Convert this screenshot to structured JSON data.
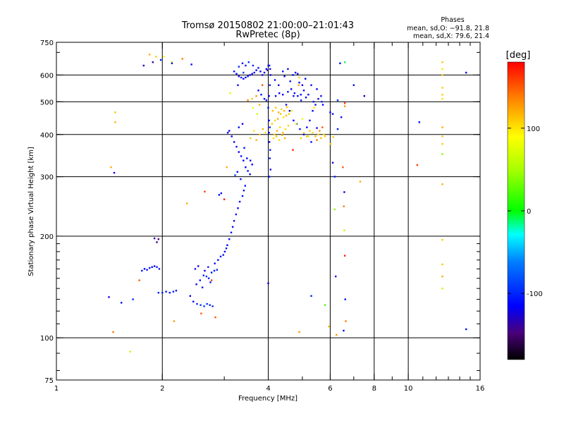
{
  "chart_data": {
    "type": "scatter",
    "title": "Tromsø 20150802 21:00:00–21:01:43",
    "subtitle": "RwPretec (8p)",
    "xlabel": "Frequency [MHz]",
    "ylabel": "Stationary phase Virtual Height [km]",
    "x_scale": "log",
    "y_scale": "log",
    "xlim": [
      1,
      16
    ],
    "ylim": [
      75,
      750
    ],
    "x_ticks": [
      1,
      2,
      4,
      6,
      8,
      10,
      16
    ],
    "x_tick_labels": [
      "1",
      "2",
      "4",
      "6",
      "8",
      "10",
      "16"
    ],
    "y_ticks": [
      75,
      100,
      200,
      300,
      400,
      500,
      600,
      750
    ],
    "y_tick_labels": [
      "75",
      "100",
      "200",
      "300",
      "400",
      "500",
      "600",
      "750"
    ],
    "grid": true,
    "stats": {
      "heading": "Phases",
      "line_o": "mean, sd,O: −91.8, 21.8",
      "line_x": "mean, sd,X:  79.6, 21.4"
    },
    "colorbar": {
      "label": "[deg]",
      "range": [
        -180,
        180
      ],
      "ticks": [
        100,
        0,
        -100
      ],
      "tick_labels": [
        "100",
        "0",
        "-100"
      ]
    },
    "points": [
      [
        1.77,
        640,
        -120
      ],
      [
        1.88,
        655,
        -140
      ],
      [
        1.84,
        690,
        120
      ],
      [
        1.92,
        680,
        110
      ],
      [
        2.02,
        680,
        90
      ],
      [
        2.13,
        655,
        70
      ],
      [
        2.28,
        670,
        140
      ],
      [
        2.42,
        645,
        -110
      ],
      [
        2.13,
        650,
        -120
      ],
      [
        1.98,
        665,
        -100
      ],
      [
        1.43,
        320,
        120
      ],
      [
        1.46,
        308,
        -120
      ],
      [
        1.47,
        465,
        110
      ],
      [
        1.47,
        435,
        120
      ],
      [
        1.75,
        158,
        -110
      ],
      [
        1.78,
        160,
        -115
      ],
      [
        1.81,
        159,
        -112
      ],
      [
        1.84,
        161,
        -108
      ],
      [
        1.87,
        162,
        -112
      ],
      [
        1.9,
        163,
        -118
      ],
      [
        1.93,
        162,
        -110
      ],
      [
        1.96,
        160,
        -105
      ],
      [
        1.9,
        197,
        -130
      ],
      [
        1.93,
        192,
        -140
      ],
      [
        1.95,
        196,
        -150
      ],
      [
        1.95,
        136,
        -105
      ],
      [
        2.0,
        136,
        -100
      ],
      [
        2.05,
        137,
        -110
      ],
      [
        2.1,
        136,
        -108
      ],
      [
        2.15,
        137,
        -104
      ],
      [
        2.19,
        138,
        -110
      ],
      [
        1.41,
        132,
        -120
      ],
      [
        1.53,
        127,
        -110
      ],
      [
        1.65,
        130,
        -100
      ],
      [
        1.72,
        148,
        150
      ],
      [
        1.45,
        104,
        140
      ],
      [
        1.62,
        91,
        60
      ],
      [
        2.4,
        133,
        -120
      ],
      [
        2.45,
        128,
        -110
      ],
      [
        2.51,
        126,
        -100
      ],
      [
        2.57,
        125,
        -95
      ],
      [
        2.63,
        124,
        -90
      ],
      [
        2.68,
        126,
        -95
      ],
      [
        2.73,
        125,
        -100
      ],
      [
        2.78,
        124,
        -95
      ],
      [
        2.5,
        144,
        -120
      ],
      [
        2.56,
        148,
        -110
      ],
      [
        2.62,
        153,
        -100
      ],
      [
        2.67,
        152,
        -95
      ],
      [
        2.71,
        150,
        -100
      ],
      [
        2.76,
        156,
        -110
      ],
      [
        2.81,
        158,
        -105
      ],
      [
        2.86,
        159,
        -100
      ],
      [
        2.48,
        160,
        -120
      ],
      [
        2.53,
        163,
        -115
      ],
      [
        2.6,
        141,
        -110
      ],
      [
        2.64,
        158,
        -115
      ],
      [
        2.7,
        162,
        -100
      ],
      [
        2.74,
        146,
        -105
      ],
      [
        2.82,
        166,
        -110
      ],
      [
        2.88,
        170,
        -110
      ],
      [
        2.93,
        174,
        -115
      ],
      [
        2.98,
        176,
        -110
      ],
      [
        3.01,
        180,
        -120
      ],
      [
        3.04,
        184,
        -110
      ],
      [
        3.06,
        188,
        -115
      ],
      [
        3.1,
        196,
        -110
      ],
      [
        3.14,
        205,
        -110
      ],
      [
        3.17,
        213,
        -115
      ],
      [
        3.2,
        222,
        -110
      ],
      [
        3.24,
        232,
        -110
      ],
      [
        3.28,
        242,
        -115
      ],
      [
        3.32,
        253,
        -115
      ],
      [
        3.38,
        263,
        -112
      ],
      [
        3.41,
        273,
        -110
      ],
      [
        3.44,
        282,
        -108
      ],
      [
        3.0,
        257,
        170
      ],
      [
        3.22,
        303,
        -90
      ],
      [
        3.05,
        320,
        120
      ],
      [
        3.34,
        295,
        -110
      ],
      [
        2.9,
        265,
        -120
      ],
      [
        2.94,
        268,
        -110
      ],
      [
        3.27,
        310,
        -120
      ],
      [
        3.07,
        405,
        -120
      ],
      [
        2.35,
        250,
        120
      ],
      [
        2.76,
        148,
        160
      ],
      [
        2.58,
        118,
        150
      ],
      [
        2.83,
        115,
        150
      ],
      [
        2.16,
        112,
        130
      ],
      [
        2.64,
        271,
        160
      ],
      [
        3.1,
        410,
        -120
      ],
      [
        3.15,
        395,
        -115
      ],
      [
        3.2,
        380,
        -120
      ],
      [
        3.25,
        368,
        -110
      ],
      [
        3.3,
        355,
        -115
      ],
      [
        3.35,
        345,
        -110
      ],
      [
        3.4,
        335,
        -120
      ],
      [
        3.45,
        320,
        -115
      ],
      [
        3.5,
        312,
        -110
      ],
      [
        3.55,
        305,
        -115
      ],
      [
        3.3,
        420,
        -110
      ],
      [
        3.38,
        430,
        -120
      ],
      [
        3.42,
        365,
        -110
      ],
      [
        3.48,
        340,
        -115
      ],
      [
        3.56,
        335,
        -110
      ],
      [
        3.6,
        326,
        -120
      ],
      [
        3.2,
        615,
        -110
      ],
      [
        3.25,
        605,
        -115
      ],
      [
        3.3,
        595,
        -120
      ],
      [
        3.35,
        590,
        -110
      ],
      [
        3.4,
        585,
        -112
      ],
      [
        3.45,
        590,
        -118
      ],
      [
        3.5,
        595,
        -110
      ],
      [
        3.55,
        600,
        -115
      ],
      [
        3.6,
        605,
        -120
      ],
      [
        3.65,
        610,
        -110
      ],
      [
        3.7,
        620,
        -115
      ],
      [
        3.75,
        630,
        -110
      ],
      [
        3.8,
        615,
        -112
      ],
      [
        3.85,
        600,
        -118
      ],
      [
        3.9,
        610,
        -110
      ],
      [
        3.95,
        625,
        -115
      ],
      [
        4.0,
        640,
        -100
      ],
      [
        4.05,
        625,
        -110
      ],
      [
        3.3,
        635,
        -100
      ],
      [
        3.38,
        650,
        -120
      ],
      [
        3.45,
        640,
        -110
      ],
      [
        3.52,
        655,
        -95
      ],
      [
        3.62,
        640,
        -100
      ],
      [
        3.4,
        610,
        -90
      ],
      [
        3.28,
        560,
        -110
      ],
      [
        3.75,
        540,
        -120
      ],
      [
        3.82,
        525,
        -110
      ],
      [
        3.9,
        510,
        -115
      ],
      [
        3.95,
        505,
        -110
      ],
      [
        3.98,
        620,
        -140
      ],
      [
        4.02,
        405,
        -120
      ],
      [
        4.04,
        420,
        -110
      ],
      [
        4.02,
        440,
        -115
      ],
      [
        4.03,
        380,
        -120
      ],
      [
        4.05,
        360,
        -110
      ],
      [
        4.04,
        340,
        -115
      ],
      [
        4.06,
        315,
        -120
      ],
      [
        4.03,
        300,
        -110
      ],
      [
        4.0,
        480,
        -110
      ],
      [
        4.02,
        520,
        -115
      ],
      [
        4.04,
        560,
        -120
      ],
      [
        4.06,
        600,
        -110
      ],
      [
        4.03,
        640,
        -115
      ],
      [
        3.62,
        480,
        80
      ],
      [
        3.72,
        460,
        60
      ],
      [
        3.56,
        390,
        110
      ],
      [
        3.64,
        410,
        100
      ],
      [
        3.7,
        385,
        120
      ],
      [
        3.78,
        400,
        110
      ],
      [
        3.86,
        415,
        120
      ],
      [
        3.93,
        405,
        100
      ],
      [
        4.1,
        430,
        110
      ],
      [
        4.18,
        440,
        105
      ],
      [
        4.26,
        445,
        120
      ],
      [
        4.34,
        460,
        110
      ],
      [
        4.42,
        450,
        100
      ],
      [
        4.5,
        455,
        115
      ],
      [
        4.58,
        460,
        110
      ],
      [
        4.66,
        470,
        100
      ],
      [
        4.16,
        400,
        110
      ],
      [
        4.24,
        410,
        120
      ],
      [
        4.32,
        420,
        105
      ],
      [
        4.4,
        405,
        115
      ],
      [
        4.48,
        415,
        100
      ],
      [
        4.56,
        425,
        110
      ],
      [
        4.12,
        470,
        115
      ],
      [
        4.2,
        480,
        110
      ],
      [
        4.28,
        465,
        120
      ],
      [
        4.36,
        475,
        105
      ],
      [
        4.44,
        470,
        115
      ],
      [
        4.52,
        482,
        110
      ],
      [
        4.14,
        390,
        100
      ],
      [
        4.22,
        395,
        110
      ],
      [
        4.3,
        385,
        105
      ],
      [
        4.38,
        398,
        115
      ],
      [
        4.46,
        390,
        120
      ],
      [
        4.2,
        520,
        -110
      ],
      [
        4.3,
        530,
        -115
      ],
      [
        4.4,
        525,
        -120
      ],
      [
        4.55,
        535,
        -110
      ],
      [
        4.65,
        545,
        -115
      ],
      [
        4.75,
        530,
        -110
      ],
      [
        4.85,
        520,
        -112
      ],
      [
        4.95,
        525,
        -118
      ],
      [
        4.18,
        580,
        -110
      ],
      [
        4.28,
        560,
        -120
      ],
      [
        4.45,
        595,
        -115
      ],
      [
        4.62,
        575,
        -110
      ],
      [
        4.78,
        610,
        -120
      ],
      [
        4.9,
        570,
        -115
      ],
      [
        5.05,
        540,
        -110
      ],
      [
        5.2,
        525,
        -115
      ],
      [
        4.5,
        490,
        -120
      ],
      [
        4.6,
        470,
        -110
      ],
      [
        4.72,
        440,
        -115
      ],
      [
        4.82,
        430,
        -120
      ],
      [
        4.92,
        415,
        -110
      ],
      [
        5.05,
        400,
        -115
      ],
      [
        5.15,
        420,
        -120
      ],
      [
        5.25,
        440,
        -110
      ],
      [
        5.35,
        470,
        -115
      ],
      [
        5.45,
        490,
        -110
      ],
      [
        5.55,
        510,
        -120
      ],
      [
        5.65,
        520,
        -110
      ],
      [
        5.72,
        490,
        -115
      ],
      [
        5.3,
        380,
        -120
      ],
      [
        4.4,
        615,
        -110
      ],
      [
        4.55,
        625,
        -120
      ],
      [
        4.7,
        600,
        -115
      ],
      [
        4.85,
        605,
        -110
      ],
      [
        5.0,
        560,
        -120
      ],
      [
        5.1,
        585,
        -115
      ],
      [
        5.3,
        560,
        -110
      ],
      [
        5.5,
        545,
        -115
      ],
      [
        4.95,
        390,
        110
      ],
      [
        5.05,
        405,
        100
      ],
      [
        5.15,
        395,
        115
      ],
      [
        5.25,
        410,
        110
      ],
      [
        5.35,
        405,
        105
      ],
      [
        5.45,
        395,
        120
      ],
      [
        5.55,
        400,
        110
      ],
      [
        5.65,
        390,
        115
      ],
      [
        5.75,
        400,
        105
      ],
      [
        5.8,
        395,
        110
      ],
      [
        5.2,
        395,
        60
      ],
      [
        5.6,
        410,
        130
      ],
      [
        5.7,
        420,
        150
      ],
      [
        5.5,
        385,
        140
      ],
      [
        5.0,
        445,
        80
      ],
      [
        4.8,
        430,
        70
      ],
      [
        4.7,
        360,
        170
      ],
      [
        5.4,
        480,
        100
      ],
      [
        4.9,
        590,
        110
      ],
      [
        4.88,
        560,
        120
      ],
      [
        4.72,
        520,
        -110
      ],
      [
        4.96,
        505,
        -100
      ],
      [
        5.12,
        515,
        -120
      ],
      [
        5.38,
        500,
        -110
      ],
      [
        5.68,
        500,
        -100
      ],
      [
        3.85,
        560,
        150
      ],
      [
        3.7,
        520,
        130
      ],
      [
        3.6,
        510,
        110
      ],
      [
        3.78,
        490,
        120
      ],
      [
        3.5,
        505,
        140
      ],
      [
        3.12,
        530,
        80
      ],
      [
        6.1,
        330,
        -120
      ],
      [
        6.18,
        300,
        -110
      ],
      [
        6.3,
        505,
        -100
      ],
      [
        6.45,
        450,
        -110
      ],
      [
        6.52,
        320,
        150
      ],
      [
        6.56,
        245,
        140
      ],
      [
        6.58,
        208,
        60
      ],
      [
        6.6,
        175,
        170
      ],
      [
        6.62,
        130,
        -110
      ],
      [
        6.64,
        112,
        140
      ],
      [
        6.55,
        105,
        -120
      ],
      [
        6.6,
        495,
        160
      ],
      [
        6.6,
        485,
        130
      ],
      [
        6.58,
        270,
        -120
      ],
      [
        6.6,
        655,
        -10
      ],
      [
        6.4,
        650,
        -110
      ],
      [
        6.18,
        240,
        40
      ],
      [
        6.22,
        152,
        -120
      ],
      [
        6.25,
        102,
        130
      ],
      [
        5.95,
        108,
        120
      ],
      [
        6.02,
        375,
        110
      ],
      [
        6.12,
        393,
        110
      ],
      [
        6.0,
        465,
        -110
      ],
      [
        7.0,
        560,
        -110
      ],
      [
        7.3,
        290,
        120
      ],
      [
        7.5,
        520,
        -120
      ],
      [
        10.6,
        325,
        160
      ],
      [
        10.75,
        435,
        -110
      ],
      [
        12.5,
        655,
        110
      ],
      [
        12.5,
        625,
        100
      ],
      [
        12.5,
        600,
        110
      ],
      [
        12.5,
        550,
        110
      ],
      [
        12.5,
        525,
        110
      ],
      [
        12.5,
        510,
        100
      ],
      [
        12.5,
        420,
        120
      ],
      [
        12.5,
        395,
        110
      ],
      [
        12.5,
        375,
        110
      ],
      [
        12.5,
        350,
        40
      ],
      [
        12.5,
        285,
        120
      ],
      [
        12.5,
        195,
        110
      ],
      [
        12.5,
        165,
        110
      ],
      [
        12.5,
        152,
        120
      ],
      [
        12.5,
        140,
        60
      ],
      [
        14.6,
        610,
        -120
      ],
      [
        14.6,
        106,
        -110
      ],
      [
        4.0,
        145,
        -120
      ],
      [
        4.9,
        104,
        130
      ],
      [
        5.3,
        133,
        -100
      ],
      [
        5.8,
        125,
        20
      ],
      [
        5.5,
        418,
        -120
      ],
      [
        6.3,
        415,
        -110
      ],
      [
        6.1,
        460,
        -115
      ]
    ]
  }
}
